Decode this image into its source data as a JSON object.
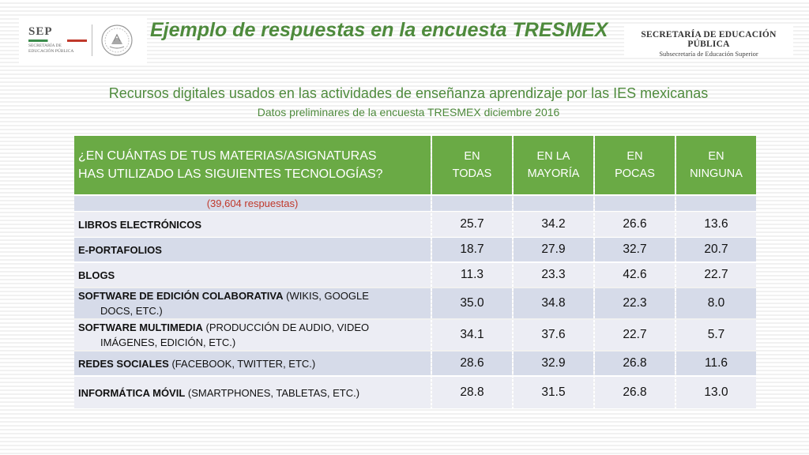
{
  "header": {
    "title": "Ejemplo de respuestas en la encuesta TRESMEX",
    "sep_logo": {
      "name": "SEP",
      "sub_line1": "SECRETARÍA DE",
      "sub_line2": "EDUCACIÓN PÚBLICA"
    },
    "sep_right_logo": {
      "main": "SECRETARÍA DE EDUCACIÓN PÚBLICA",
      "sub": "Subsecretaría de Educación Superior"
    }
  },
  "subtitle": "Recursos digitales usados en las actividades de enseñanza aprendizaje por las IES mexicanas",
  "subtitle2": "Datos preliminares de la encuesta TRESMEX diciembre 2016",
  "colors": {
    "accent_green": "#4e8a3c",
    "header_green": "#6aaa45",
    "row_dark": "#d6dbe9",
    "row_light": "#ecedf4",
    "responses_red": "#c0392b"
  },
  "table": {
    "question_line1": "¿EN CUÁNTAS DE TUS MATERIAS/ASIGNATURAS",
    "question_line2": "HAS UTILIZADO LAS SIGUIENTES TECNOLOGÍAS?",
    "columns": [
      {
        "line1": "EN",
        "line2": "TODAS"
      },
      {
        "line1": "EN LA",
        "line2": "MAYORÍA"
      },
      {
        "line1": "EN",
        "line2": "POCAS"
      },
      {
        "line1": "EN",
        "line2": "NINGUNA"
      }
    ],
    "responses": "(39,604 respuestas)",
    "rows": [
      {
        "bold": "LIBROS ELECTRÓNICOS",
        "rest": "",
        "rest2": "",
        "values": [
          "25.7",
          "34.2",
          "26.6",
          "13.6"
        ]
      },
      {
        "bold": "E-PORTAFOLIOS",
        "rest": "",
        "rest2": "",
        "values": [
          "18.7",
          "27.9",
          "32.7",
          "20.7"
        ]
      },
      {
        "bold": "BLOGS",
        "rest": "",
        "rest2": "",
        "values": [
          "11.3",
          "23.3",
          "42.6",
          "22.7"
        ]
      },
      {
        "bold": "SOFTWARE DE EDICIÓN COLABORATIVA",
        "rest": " (WIKIS, GOOGLE",
        "rest2": "DOCS, ETC.)",
        "values": [
          "35.0",
          "34.8",
          "22.3",
          "8.0"
        ]
      },
      {
        "bold": "SOFTWARE MULTIMEDIA",
        "rest": " (PRODUCCIÓN DE AUDIO, VIDEO",
        "rest2": "IMÁGENES, EDICIÓN, ETC.)",
        "values": [
          "34.1",
          "37.6",
          "22.7",
          "5.7"
        ]
      },
      {
        "bold": "REDES SOCIALES",
        "rest": " (FACEBOOK, TWITTER, ETC.)",
        "rest2": "",
        "values": [
          "28.6",
          "32.9",
          "26.8",
          "11.6"
        ]
      },
      {
        "bold": "INFORMÁTICA MÓVIL",
        "rest": " (SMARTPHONES, TABLETAS, ETC.)",
        "rest2": "",
        "values": [
          "28.8",
          "31.5",
          "26.8",
          "13.0"
        ]
      }
    ]
  }
}
